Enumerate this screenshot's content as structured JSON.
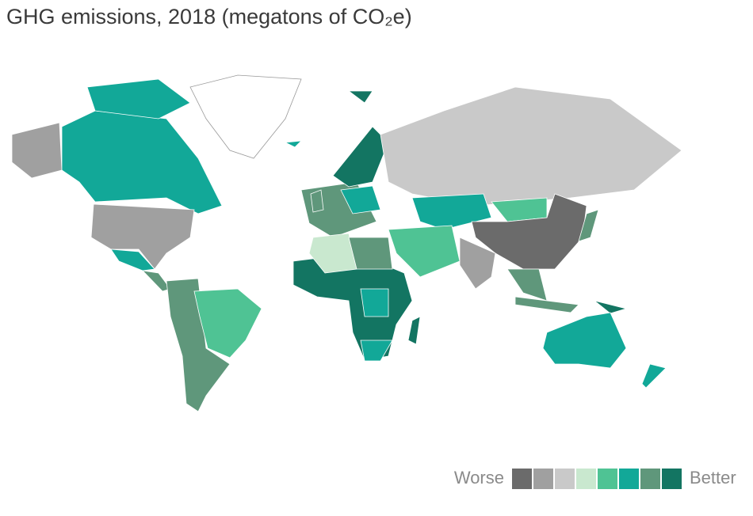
{
  "title": "GHG emissions, 2018 (megatons of CO₂e)",
  "legend": {
    "low_label": "Worse",
    "high_label": "Better",
    "colors": [
      "#6b6b6b",
      "#a0a0a0",
      "#c9c9c9",
      "#c9e8cf",
      "#4fc394",
      "#12a898",
      "#5f977b",
      "#137562"
    ]
  },
  "no_data_color": "#ffffff"
}
